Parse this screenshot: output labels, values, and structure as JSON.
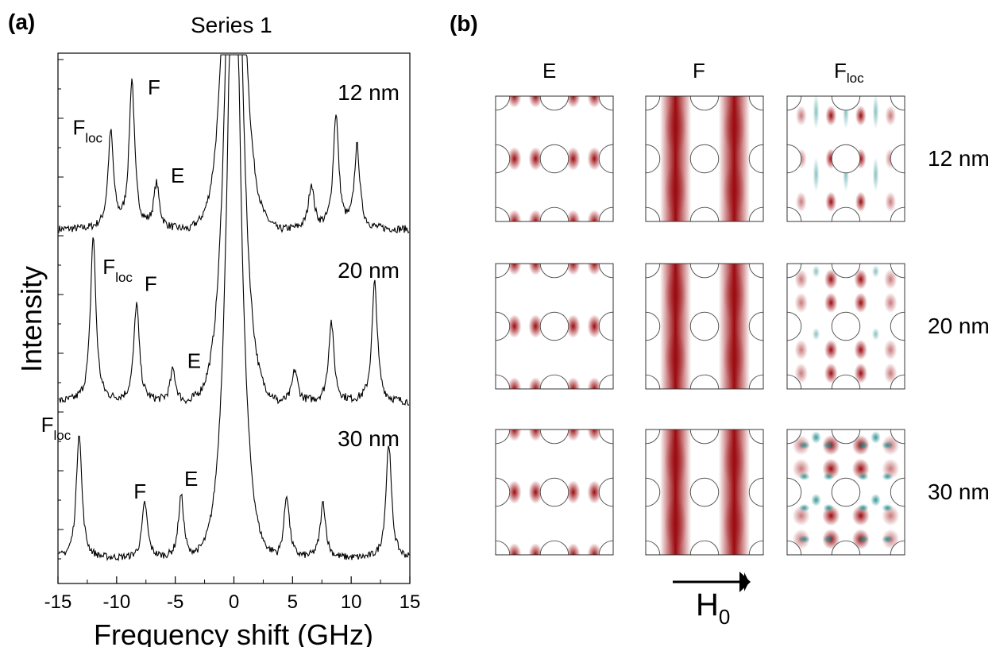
{
  "panel_a": {
    "letter": "(a)",
    "title": "Series 1",
    "ylabel": "Intensity",
    "xlabel": "Frequency shift (GHz)"
  },
  "panel_b": {
    "letter": "(b)",
    "col_headers": [
      {
        "base": "E",
        "sub": ""
      },
      {
        "base": "F",
        "sub": ""
      },
      {
        "base": "F",
        "sub": "loc"
      }
    ],
    "row_labels": [
      "12 nm",
      "20 nm",
      "30 nm"
    ],
    "field_arrow": {
      "base": "H",
      "sub": "0"
    }
  },
  "colors": {
    "positive": "#9b0a0f",
    "negative": "#1c8a8a",
    "trace": "#000000"
  },
  "chart_data": [
    {
      "type": "line",
      "title": "Series 1",
      "xlabel": "Frequency shift (GHz)",
      "ylabel": "Intensity",
      "xlim": [
        -15,
        15
      ],
      "xticks": [
        "-15",
        "-10",
        "-5",
        "0",
        "5",
        "10",
        "15"
      ],
      "yticks_shown": false,
      "series": [
        {
          "name": "12 nm",
          "peaks": [
            {
              "label_base": "F",
              "label_sub": "loc",
              "x": -10.5,
              "height": 0.56
            },
            {
              "label_base": "F",
              "label_sub": "",
              "x": -8.7,
              "height": 0.87
            },
            {
              "label_base": "E",
              "label_sub": "",
              "x": -6.6,
              "height": 0.26
            },
            {
              "x": 6.6,
              "height": 0.26
            },
            {
              "x": 8.7,
              "height": 0.67
            },
            {
              "x": 10.5,
              "height": 0.48
            }
          ]
        },
        {
          "name": "20 nm",
          "peaks": [
            {
              "label_base": "F",
              "label_sub": "loc",
              "x": -12.0,
              "height": 0.93
            },
            {
              "label_base": "F",
              "label_sub": "",
              "x": -8.3,
              "height": 0.55
            },
            {
              "label_base": "E",
              "label_sub": "",
              "x": -5.2,
              "height": 0.18
            },
            {
              "x": 5.2,
              "height": 0.18
            },
            {
              "x": 8.3,
              "height": 0.45
            },
            {
              "x": 12.0,
              "height": 0.67
            }
          ]
        },
        {
          "name": "30 nm",
          "peaks": [
            {
              "label_base": "F",
              "label_sub": "loc",
              "x": -13.2,
              "height": 0.8
            },
            {
              "label_base": "F",
              "label_sub": "",
              "x": -7.6,
              "height": 0.35
            },
            {
              "label_base": "E",
              "label_sub": "",
              "x": -4.5,
              "height": 0.4
            },
            {
              "x": 4.5,
              "height": 0.4
            },
            {
              "x": 7.6,
              "height": 0.35
            },
            {
              "x": 13.2,
              "height": 0.73
            }
          ]
        }
      ]
    },
    {
      "type": "heatmap",
      "description_rows": [
        "12 nm",
        "20 nm",
        "30 nm"
      ],
      "columns": [
        "E",
        "F",
        "Floc"
      ],
      "field_direction": "horizontal (H0 to the right)"
    }
  ]
}
